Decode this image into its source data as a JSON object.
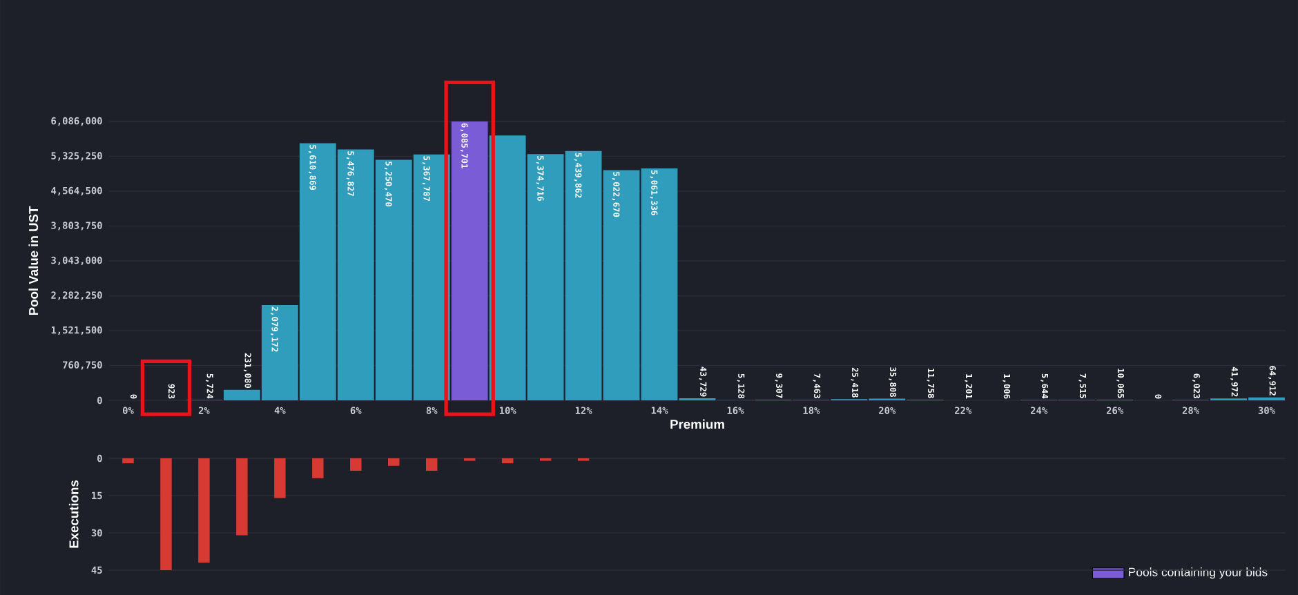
{
  "chart_data": [
    {
      "type": "bar",
      "xlabel": "Premium",
      "ylabel": "Pool Value in UST",
      "categories": [
        "0%",
        null,
        "2%",
        null,
        "4%",
        null,
        "6%",
        null,
        "8%",
        null,
        "10%",
        null,
        "12%",
        null,
        "14%",
        null,
        "16%",
        null,
        "18%",
        null,
        "20%",
        null,
        "22%",
        null,
        "24%",
        null,
        "26%",
        null,
        "28%",
        null,
        "30%"
      ],
      "series": [
        {
          "color": "#2f9dbb",
          "values": [
            0,
            null,
            5724,
            231080,
            2079172,
            5610869,
            5476827,
            5250470,
            5367787,
            null,
            5780000,
            5374716,
            5439862,
            5022670,
            5061336,
            43729,
            5128,
            9307,
            7463,
            25418,
            35808,
            11758,
            1201,
            1006,
            5644,
            7515,
            10065,
            0,
            6023,
            41972,
            64912
          ],
          "value_labels": [
            "0",
            null,
            "5,724",
            "231,080",
            "2,079,172",
            "5,610,869",
            "5,476,827",
            "5,250,470",
            "5,367,787",
            null,
            null,
            "5,374,716",
            "5,439,862",
            "5,022,670",
            "5,061,336",
            "43,729",
            "5,128",
            "9,307",
            "7,463",
            "25,418",
            "35,808",
            "11,758",
            "1,201",
            "1,006",
            "5,644",
            "7,515",
            "10,065",
            "0",
            "6,023",
            "41,972",
            "64,912"
          ]
        },
        {
          "name": "Pools containing your bids",
          "color": "#7a5cd6",
          "values": [
            null,
            923,
            null,
            null,
            null,
            null,
            null,
            null,
            null,
            6085701,
            null,
            null,
            null,
            null,
            null,
            null,
            null,
            null,
            null,
            null,
            null,
            null,
            null,
            null,
            null,
            null,
            null,
            null,
            null,
            null,
            null
          ],
          "value_labels": [
            null,
            "923",
            null,
            null,
            null,
            null,
            null,
            null,
            null,
            "6,085,701",
            null,
            null,
            null,
            null,
            null,
            null,
            null,
            null,
            null,
            null,
            null,
            null,
            null,
            null,
            null,
            null,
            null,
            null,
            null,
            null,
            null
          ]
        }
      ],
      "ylim": [
        0,
        6086000
      ],
      "yticks": [
        0,
        {
          "value": 760750,
          "label": "760,750"
        },
        {
          "value": 1521500,
          "label": "1,521,500"
        },
        {
          "value": 2282250,
          "label": "2,282,250"
        },
        {
          "value": 3043000,
          "label": "3,043,000"
        },
        {
          "value": 3803750,
          "label": "3,803,750"
        },
        {
          "value": 4564500,
          "label": "4,564,500"
        },
        {
          "value": 5325250,
          "label": "5,325,250"
        },
        {
          "value": 6086000,
          "label": "6,086,000"
        }
      ],
      "grid": "y",
      "legend": "bottom right"
    },
    {
      "type": "bar",
      "ylabel": "Executions",
      "categories": [
        null,
        null,
        null,
        null,
        null,
        null,
        null,
        null,
        null,
        null,
        null,
        null,
        null,
        null,
        null,
        null,
        null,
        null,
        null,
        null,
        null,
        null,
        null,
        null,
        null,
        null,
        null,
        null,
        null,
        null,
        null
      ],
      "values": [
        2,
        45,
        42,
        31,
        16,
        8,
        5,
        3,
        5,
        1,
        2,
        1,
        1,
        null,
        null,
        null,
        null,
        null,
        null,
        null,
        null,
        null,
        null,
        null,
        null,
        null,
        null,
        null,
        null,
        null,
        null
      ],
      "color": "#d63a32",
      "ylim": [
        45,
        0
      ],
      "yticks": [
        0,
        15,
        30,
        45
      ],
      "grid": "y",
      "tick_labels": "y"
    }
  ]
}
